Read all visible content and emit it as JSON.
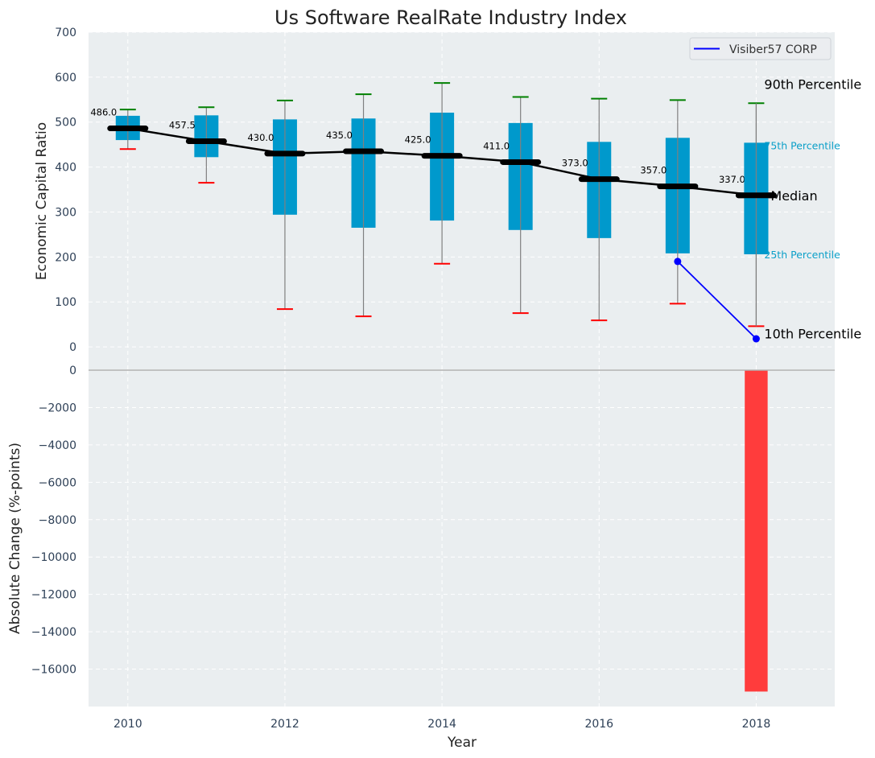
{
  "chart_data": {
    "type": "boxplot-with-bar",
    "title": "Us Software RealRate Industry Index",
    "xlabel": "Year",
    "x_ticks": [
      2010,
      2012,
      2014,
      2016,
      2018
    ],
    "xlim": [
      2009.5,
      2019.0
    ],
    "grid": true,
    "legend": {
      "placement": "top-right",
      "entries": [
        {
          "label": "Visiber57 CORP",
          "color": "#0000ff"
        }
      ]
    },
    "top_panel": {
      "ylabel": "Economic Capital Ratio",
      "ylim": [
        -50,
        700
      ],
      "y_ticks": [
        0,
        100,
        200,
        300,
        400,
        500,
        600,
        700
      ],
      "years": [
        2010,
        2011,
        2012,
        2013,
        2014,
        2015,
        2016,
        2017,
        2018
      ],
      "p10": [
        440,
        365,
        84,
        68,
        185,
        75,
        59,
        96,
        46
      ],
      "p25": [
        460,
        422,
        294,
        265,
        281,
        260,
        242,
        208,
        206
      ],
      "median": [
        486.0,
        457.5,
        430.0,
        435.0,
        425.0,
        411.0,
        373.0,
        357.0,
        337.0
      ],
      "p75": [
        514,
        515,
        506,
        508,
        521,
        498,
        456,
        465,
        454
      ],
      "p90": [
        528,
        533,
        548,
        562,
        587,
        556,
        552,
        549,
        542
      ],
      "median_labels": [
        "486.0",
        "457.5",
        "430.0",
        "435.0",
        "425.0",
        "411.0",
        "373.0",
        "357.0",
        "337.0"
      ],
      "company_series": {
        "name": "Visiber57 CORP",
        "x": [
          2017,
          2018
        ],
        "y": [
          190,
          18
        ]
      },
      "annotations": {
        "p90": "90th Percentile",
        "p75": "75th Percentile",
        "median": "Median",
        "p25": "25th Percentile",
        "p10": "10th Percentile"
      },
      "colors": {
        "box": "#0099cc",
        "median": "#000000",
        "p90_cap": "#008000",
        "p10_cap": "#ff0000",
        "whisker": "#808080",
        "company": "#0000ff"
      }
    },
    "bottom_panel": {
      "ylabel": "Absolute Change (%-points)",
      "ylim": [
        -18000,
        0
      ],
      "y_ticks": [
        0,
        -2000,
        -4000,
        -6000,
        -8000,
        -10000,
        -12000,
        -14000,
        -16000
      ],
      "bars": [
        {
          "x": 2018,
          "value": -17200,
          "color": "#ff3c3c"
        }
      ]
    }
  }
}
